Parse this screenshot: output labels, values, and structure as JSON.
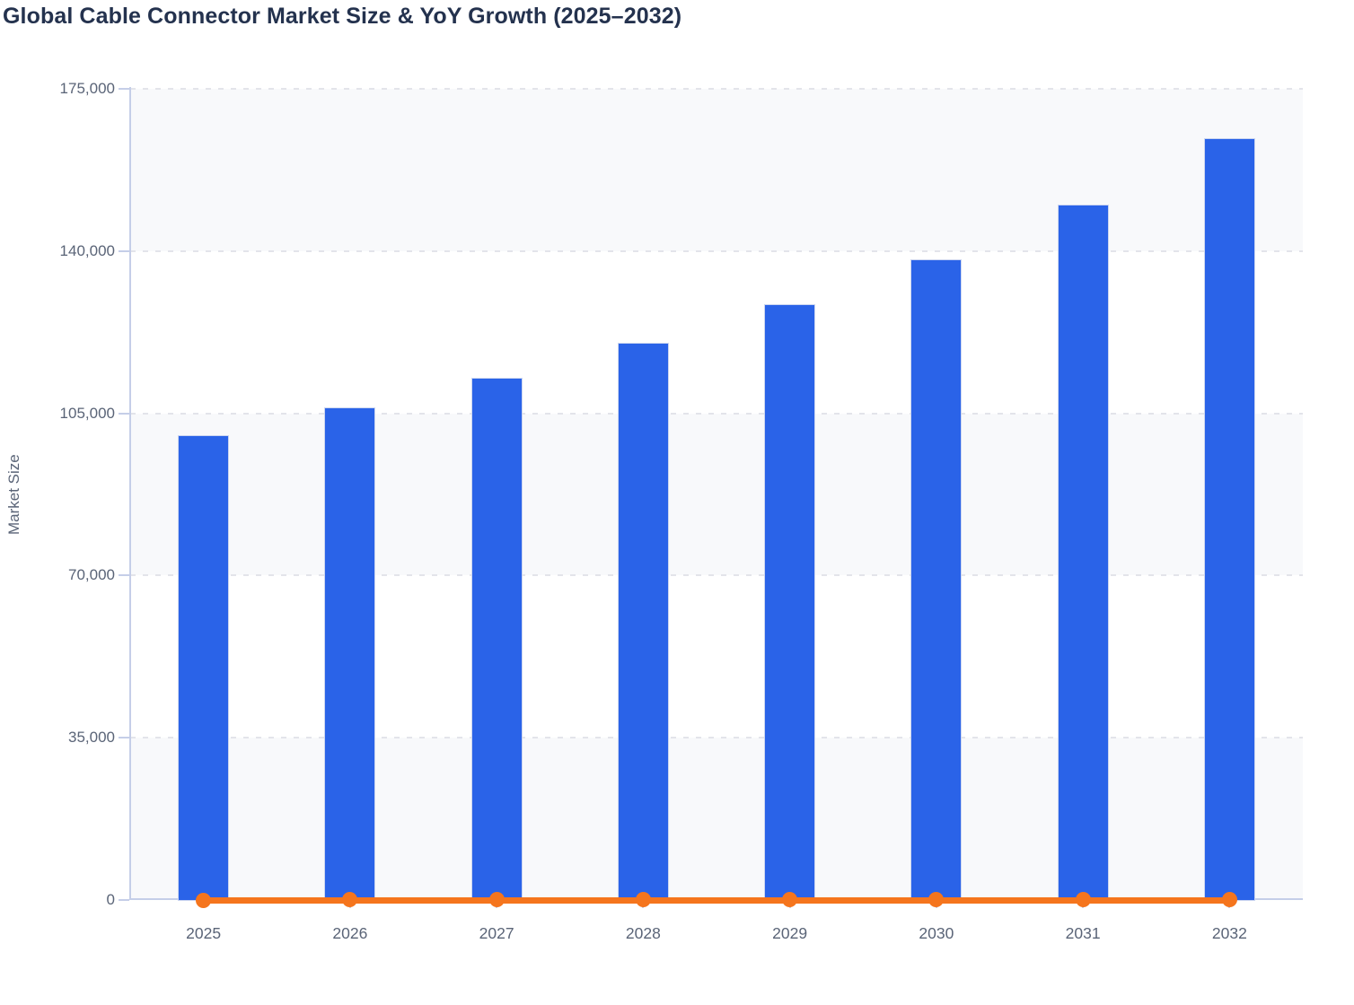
{
  "chart": {
    "title": "Global Cable Connector Market Size & YoY Growth (2025–2032)",
    "ylabel": "Market Size"
  },
  "colors": {
    "bar": "#2a63e8",
    "bar_edge": "#ccd6f0",
    "line": "#f5751d",
    "title_text": "#24324e",
    "tick_label": "#5a6477",
    "axis": "#c5cee8",
    "gridline": "#e3e4ea",
    "band_shaded": "#f8f9fb",
    "band_plain": "#ffffff"
  },
  "chart_data": {
    "type": "bar",
    "title": "Global Cable Connector Market Size & YoY Growth (2025–2032)",
    "xlabel": "",
    "ylabel": "Market Size",
    "categories": [
      "2025",
      "2026",
      "2027",
      "2028",
      "2029",
      "2030",
      "2031",
      "2032"
    ],
    "series": [
      {
        "name": "Market Size",
        "type": "bar",
        "values": [
          100000,
          106000,
          112500,
          120000,
          128300,
          138000,
          149800,
          164100
        ]
      },
      {
        "name": "YoY Growth",
        "type": "line",
        "values": [
          0,
          6.0,
          6.1,
          6.7,
          6.9,
          7.6,
          8.5,
          9.6
        ]
      }
    ],
    "ylim": [
      0,
      175000
    ],
    "yticks": [
      0,
      35000,
      70000,
      105000,
      140000,
      175000
    ],
    "ytick_labels": [
      "0",
      "35,000",
      "70,000",
      "105,000",
      "140,000",
      "175,000"
    ],
    "grid": "horizontal-dashed",
    "plot_background": "alternating-horizontal-bands",
    "legend": "none"
  }
}
